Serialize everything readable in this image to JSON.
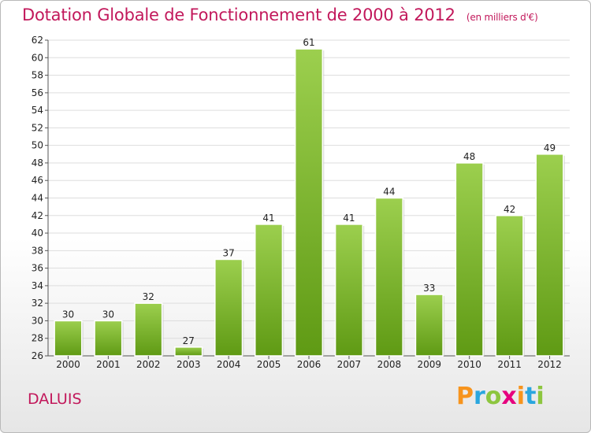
{
  "title": "Dotation Globale de Fonctionnement de 2000 à 2012",
  "subtitle": "(en milliers d'€)",
  "commune": "DALUIS",
  "logo": {
    "letters": [
      "P",
      "r",
      "o",
      "x",
      "i",
      "t",
      "i"
    ],
    "colors": [
      "#f7941d",
      "#2aa6de",
      "#8dc63f",
      "#e6007e",
      "#f7941d",
      "#2aa6de",
      "#8dc63f"
    ]
  },
  "colors": {
    "bar_top": "#9ccf4e",
    "bar_bottom": "#5f9a14",
    "title": "#c2185b"
  },
  "chart_data": {
    "type": "bar",
    "categories": [
      "2000",
      "2001",
      "2002",
      "2003",
      "2004",
      "2005",
      "2006",
      "2007",
      "2008",
      "2009",
      "2010",
      "2011",
      "2012"
    ],
    "values": [
      30,
      30,
      32,
      27,
      37,
      41,
      61,
      41,
      44,
      33,
      48,
      42,
      49
    ],
    "data_labels": [
      "30",
      "30",
      "32",
      "27",
      "37",
      "41",
      "61",
      "41",
      "44",
      "33",
      "48",
      "42",
      "49"
    ],
    "ylim": [
      26,
      62
    ],
    "yticks": [
      26,
      28,
      30,
      32,
      34,
      36,
      38,
      40,
      42,
      44,
      46,
      48,
      50,
      52,
      54,
      56,
      58,
      60,
      62
    ],
    "ytick_labels": [
      "26",
      "28",
      "30",
      "32",
      "34",
      "36",
      "38",
      "40",
      "42",
      "44",
      "46",
      "48",
      "50",
      "52",
      "54",
      "56",
      "58",
      "60",
      "62"
    ],
    "grid": "horizontal",
    "title": "Dotation Globale de Fonctionnement de 2000 à 2012",
    "xlabel": "",
    "ylabel": ""
  }
}
